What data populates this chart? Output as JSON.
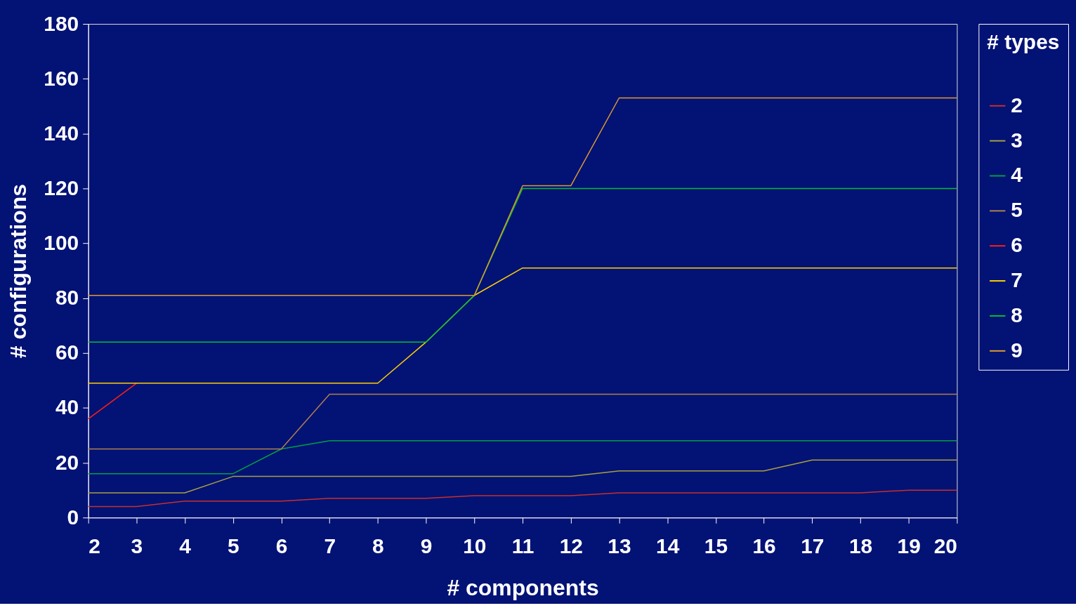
{
  "chart_data": {
    "type": "line",
    "xlabel": "# components",
    "ylabel": "# configurations",
    "legend_title": "# types",
    "legend": "right",
    "grid": false,
    "marker": "none",
    "line_style": "solid",
    "x": [
      2,
      3,
      4,
      5,
      6,
      7,
      8,
      9,
      10,
      11,
      12,
      13,
      14,
      15,
      16,
      17,
      18,
      19,
      20
    ],
    "xlim": [
      2,
      20
    ],
    "xticks": [
      2,
      3,
      4,
      5,
      6,
      7,
      8,
      9,
      10,
      11,
      12,
      13,
      14,
      15,
      16,
      17,
      18,
      19,
      20
    ],
    "ylim": [
      0,
      180
    ],
    "yticks": [
      0,
      20,
      40,
      60,
      80,
      100,
      120,
      140,
      160,
      180
    ],
    "series": [
      {
        "name": "2",
        "color": "#c8302a",
        "values": [
          4,
          4,
          6,
          6,
          6,
          7,
          7,
          7,
          8,
          8,
          8,
          9,
          9,
          9,
          9,
          9,
          9,
          10,
          10
        ]
      },
      {
        "name": "3",
        "color": "#a8a040",
        "values": [
          9,
          9,
          9,
          15,
          15,
          15,
          15,
          15,
          15,
          15,
          15,
          17,
          17,
          17,
          17,
          21,
          21,
          21,
          21
        ]
      },
      {
        "name": "4",
        "color": "#00a040",
        "values": [
          16,
          16,
          16,
          16,
          25,
          28,
          28,
          28,
          28,
          28,
          28,
          28,
          28,
          28,
          28,
          28,
          28,
          28,
          28
        ]
      },
      {
        "name": "5",
        "color": "#b08050",
        "values": [
          25,
          25,
          25,
          25,
          25,
          45,
          45,
          45,
          45,
          45,
          45,
          45,
          45,
          45,
          45,
          45,
          45,
          45,
          45
        ]
      },
      {
        "name": "6",
        "color": "#ff2010",
        "values": [
          36,
          49,
          null,
          null,
          null,
          null,
          null,
          null,
          null,
          null,
          null,
          null,
          null,
          null,
          null,
          null,
          null,
          null,
          null
        ]
      },
      {
        "name": "7",
        "color": "#ffd000",
        "values": [
          49,
          49,
          49,
          49,
          49,
          49,
          49,
          64,
          81,
          91,
          91,
          91,
          91,
          91,
          91,
          91,
          91,
          91,
          91
        ]
      },
      {
        "name": "8",
        "color": "#00c030",
        "values": [
          64,
          64,
          64,
          64,
          64,
          64,
          64,
          64,
          81,
          120,
          120,
          120,
          120,
          120,
          120,
          120,
          120,
          120,
          120
        ]
      },
      {
        "name": "9",
        "color": "#e09a30",
        "values": [
          81,
          81,
          81,
          81,
          81,
          81,
          81,
          81,
          81,
          121,
          121,
          153,
          153,
          153,
          153,
          153,
          153,
          153,
          153
        ]
      }
    ]
  }
}
